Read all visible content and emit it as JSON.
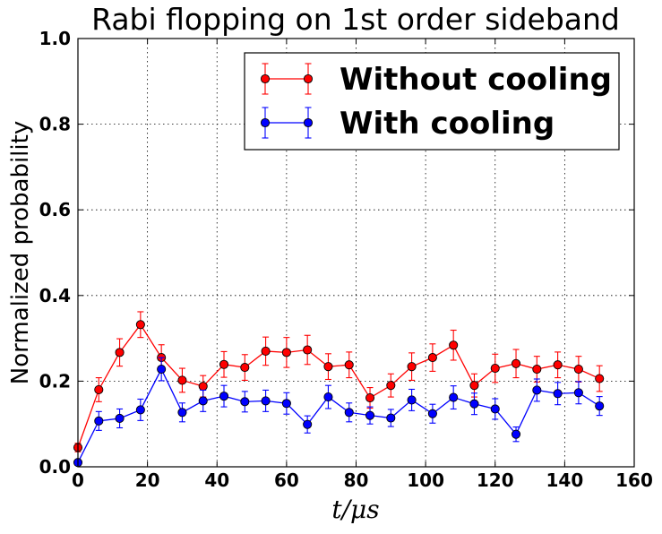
{
  "chart_data": {
    "type": "line",
    "title": "Rabi flopping on 1st order sideband",
    "xlabel": "t/μs",
    "ylabel": "Normalized probability",
    "xlim": [
      0,
      160
    ],
    "ylim": [
      0.0,
      1.0
    ],
    "xticks": [
      "0",
      "20",
      "40",
      "60",
      "80",
      "100",
      "120",
      "140",
      "160"
    ],
    "yticks": [
      "0.0",
      "0.2",
      "0.4",
      "0.6",
      "0.8",
      "1.0"
    ],
    "grid": true,
    "legend_position": "top-right",
    "x": [
      0,
      6,
      12,
      18,
      24,
      30,
      36,
      42,
      48,
      54,
      60,
      66,
      72,
      78,
      84,
      90,
      96,
      102,
      108,
      114,
      120,
      126,
      132,
      138,
      144,
      150
    ],
    "series": [
      {
        "name": "Without cooling",
        "color": "#ff0000",
        "values": [
          0.045,
          0.18,
          0.267,
          0.332,
          0.255,
          0.202,
          0.188,
          0.239,
          0.232,
          0.27,
          0.267,
          0.273,
          0.234,
          0.238,
          0.161,
          0.19,
          0.234,
          0.255,
          0.284,
          0.19,
          0.23,
          0.241,
          0.228,
          0.238,
          0.228,
          0.206
        ],
        "errors": [
          0.01,
          0.028,
          0.032,
          0.03,
          0.03,
          0.028,
          0.025,
          0.03,
          0.03,
          0.033,
          0.035,
          0.034,
          0.03,
          0.03,
          0.024,
          0.027,
          0.032,
          0.032,
          0.035,
          0.027,
          0.033,
          0.033,
          0.03,
          0.03,
          0.03,
          0.03
        ]
      },
      {
        "name": "With cooling",
        "color": "#0000ff",
        "values": [
          0.01,
          0.107,
          0.113,
          0.133,
          0.228,
          0.127,
          0.154,
          0.165,
          0.152,
          0.154,
          0.148,
          0.099,
          0.163,
          0.127,
          0.12,
          0.114,
          0.156,
          0.124,
          0.162,
          0.147,
          0.135,
          0.076,
          0.179,
          0.171,
          0.173,
          0.142
        ],
        "errors": [
          0.005,
          0.022,
          0.022,
          0.025,
          0.027,
          0.022,
          0.025,
          0.025,
          0.024,
          0.025,
          0.025,
          0.02,
          0.027,
          0.022,
          0.02,
          0.02,
          0.025,
          0.022,
          0.027,
          0.025,
          0.024,
          0.017,
          0.026,
          0.026,
          0.026,
          0.022
        ]
      }
    ]
  }
}
